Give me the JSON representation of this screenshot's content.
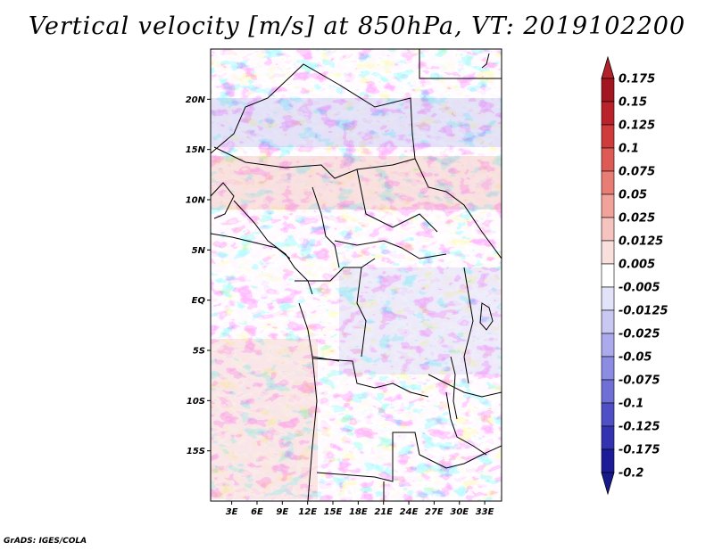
{
  "title": "Vertical velocity [m/s] at 850hPa, VT: 2019102200",
  "footer": "GrADS: IGES/COLA",
  "map": {
    "lat_ticks": [
      {
        "label": "20N",
        "lat": 20
      },
      {
        "label": "15N",
        "lat": 15
      },
      {
        "label": "10N",
        "lat": 10
      },
      {
        "label": "5N",
        "lat": 5
      },
      {
        "label": "EQ",
        "lat": 0
      },
      {
        "label": "5S",
        "lat": -5
      },
      {
        "label": "10S",
        "lat": -10
      },
      {
        "label": "15S",
        "lat": -15
      }
    ],
    "lon_ticks": [
      {
        "label": "3E",
        "lon": 3
      },
      {
        "label": "6E",
        "lon": 6
      },
      {
        "label": "9E",
        "lon": 9
      },
      {
        "label": "12E",
        "lon": 12
      },
      {
        "label": "15E",
        "lon": 15
      },
      {
        "label": "18E",
        "lon": 18
      },
      {
        "label": "21E",
        "lon": 21
      },
      {
        "label": "24E",
        "lon": 24
      },
      {
        "label": "27E",
        "lon": 27
      },
      {
        "label": "30E",
        "lon": 30
      },
      {
        "label": "33E",
        "lon": 33
      }
    ],
    "lat_range": [
      -20,
      25
    ],
    "lon_range": [
      0.5,
      35
    ]
  },
  "colorbar": {
    "labels": [
      "0.175",
      "0.15",
      "0.125",
      "0.1",
      "0.075",
      "0.05",
      "0.025",
      "0.0125",
      "0.005",
      "-0.005",
      "-0.0125",
      "-0.025",
      "-0.05",
      "-0.075",
      "-0.1",
      "-0.125",
      "-0.175",
      "-0.2"
    ],
    "colors": [
      "#a11621",
      "#b9222b",
      "#cf3a3a",
      "#dd5a55",
      "#e77d75",
      "#f0a29b",
      "#f6c4bf",
      "#fae0dd",
      "#ffffff",
      "#e2e2f8",
      "#c8c8f2",
      "#aaaaec",
      "#8c8ce2",
      "#6f6fd5",
      "#5050c6",
      "#3333b2",
      "#1c1c99"
    ],
    "top_color": "#b3222a",
    "bottom_color": "#171a8c"
  }
}
